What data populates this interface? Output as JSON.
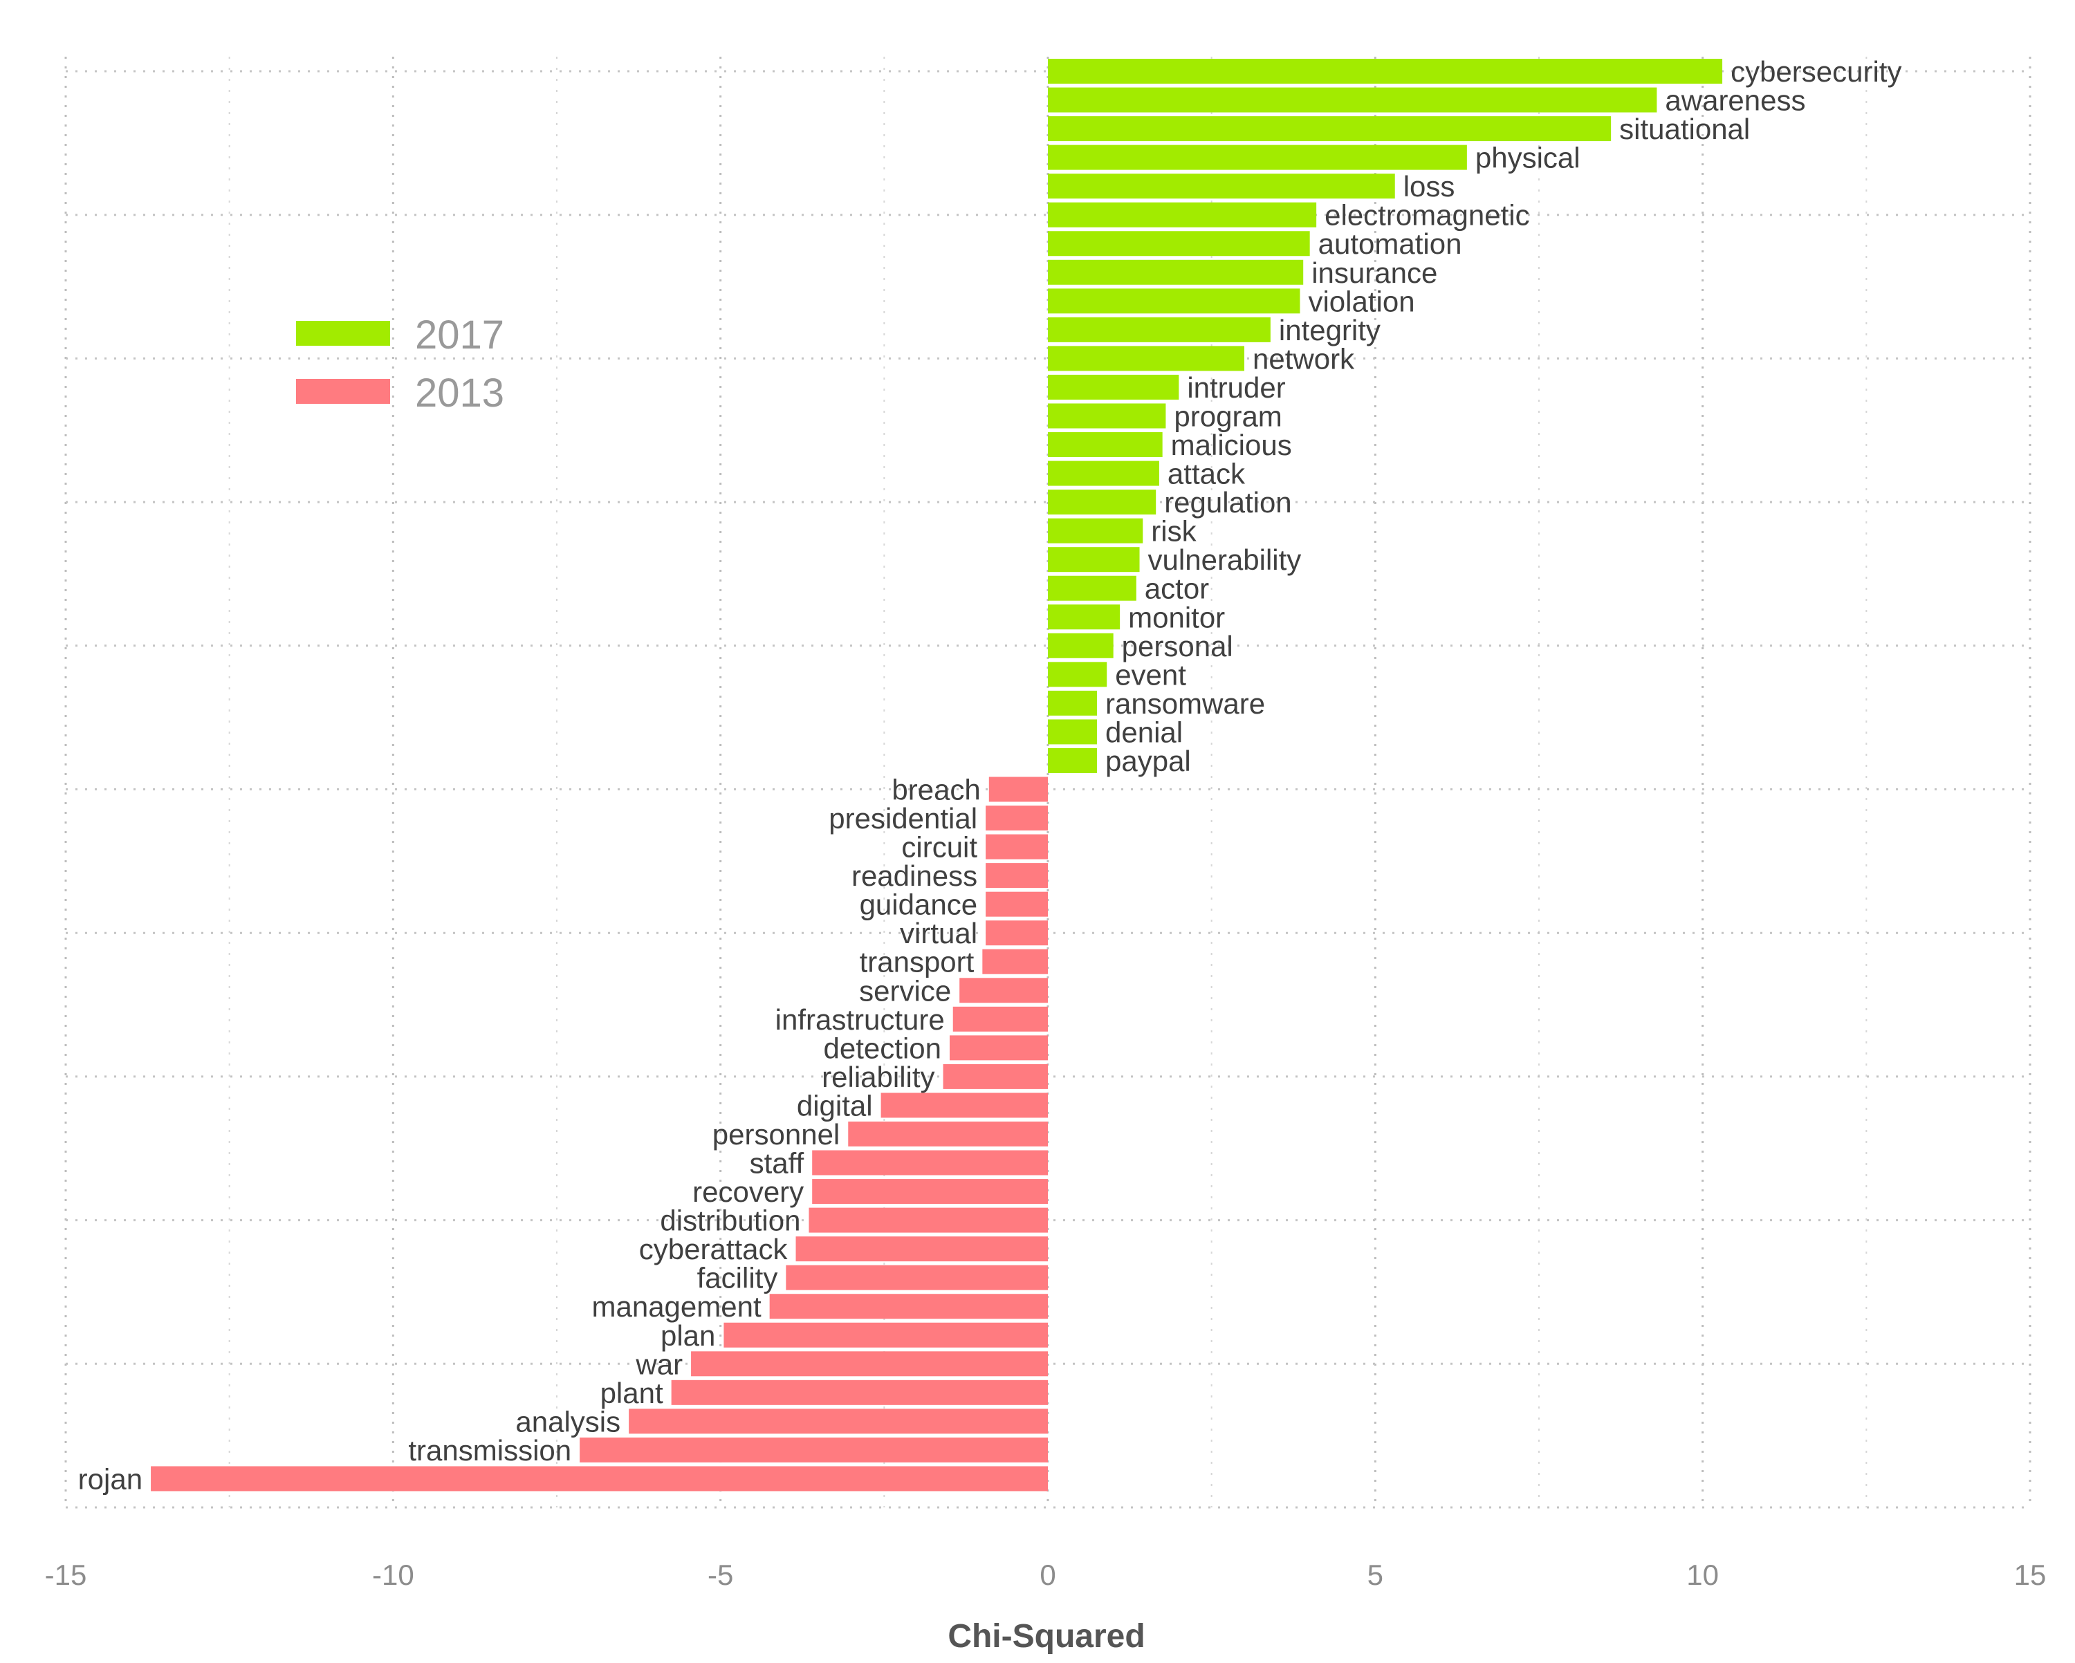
{
  "chart_data": {
    "type": "bar",
    "orientation": "horizontal",
    "title": "",
    "xlabel": "Chi-Squared",
    "ylabel": "",
    "xlim": [
      -15,
      15
    ],
    "x_ticks": [
      -15,
      -10,
      -5,
      0,
      5,
      10,
      15
    ],
    "x_tick_labels": [
      "-15",
      "-10",
      "-5",
      "0",
      "5",
      "10",
      "15"
    ],
    "grid": "on",
    "legend_position": "left",
    "legend": [
      {
        "label": "2017",
        "color": "#a2eb00"
      },
      {
        "label": "2013",
        "color": "#ff7b80"
      }
    ],
    "series": [
      {
        "name": "2017",
        "color": "#a2eb00",
        "categories": [
          "cybersecurity",
          "awareness",
          "situational",
          "physical",
          "loss",
          "electromagnetic",
          "automation",
          "insurance",
          "violation",
          "integrity",
          "network",
          "intruder",
          "program",
          "malicious",
          "attack",
          "regulation",
          "risk",
          "vulnerability",
          "actor",
          "monitor",
          "personal",
          "event",
          "ransomware",
          "denial",
          "paypal"
        ],
        "values": [
          10.3,
          9.3,
          8.6,
          6.4,
          5.3,
          4.1,
          4.0,
          3.9,
          3.85,
          3.4,
          3.0,
          2.0,
          1.8,
          1.75,
          1.7,
          1.65,
          1.45,
          1.4,
          1.35,
          1.1,
          1.0,
          0.9,
          0.75,
          0.75,
          0.75
        ]
      },
      {
        "name": "2013",
        "color": "#ff7b80",
        "categories": [
          "breach",
          "presidential",
          "circuit",
          "readiness",
          "guidance",
          "virtual",
          "transport",
          "service",
          "infrastructure",
          "detection",
          "reliability",
          "digital",
          "personnel",
          "staff",
          "recovery",
          "distribution",
          "cyberattack",
          "facility",
          "management",
          "plan",
          "war",
          "plant",
          "analysis",
          "transmission",
          "rojan"
        ],
        "values": [
          -0.9,
          -0.95,
          -0.95,
          -0.95,
          -0.95,
          -0.95,
          -1.0,
          -1.35,
          -1.45,
          -1.5,
          -1.6,
          -2.55,
          -3.05,
          -3.6,
          -3.6,
          -3.65,
          -3.85,
          -4.0,
          -4.25,
          -4.95,
          -5.45,
          -5.75,
          -6.4,
          -7.15,
          -13.7
        ]
      }
    ]
  }
}
